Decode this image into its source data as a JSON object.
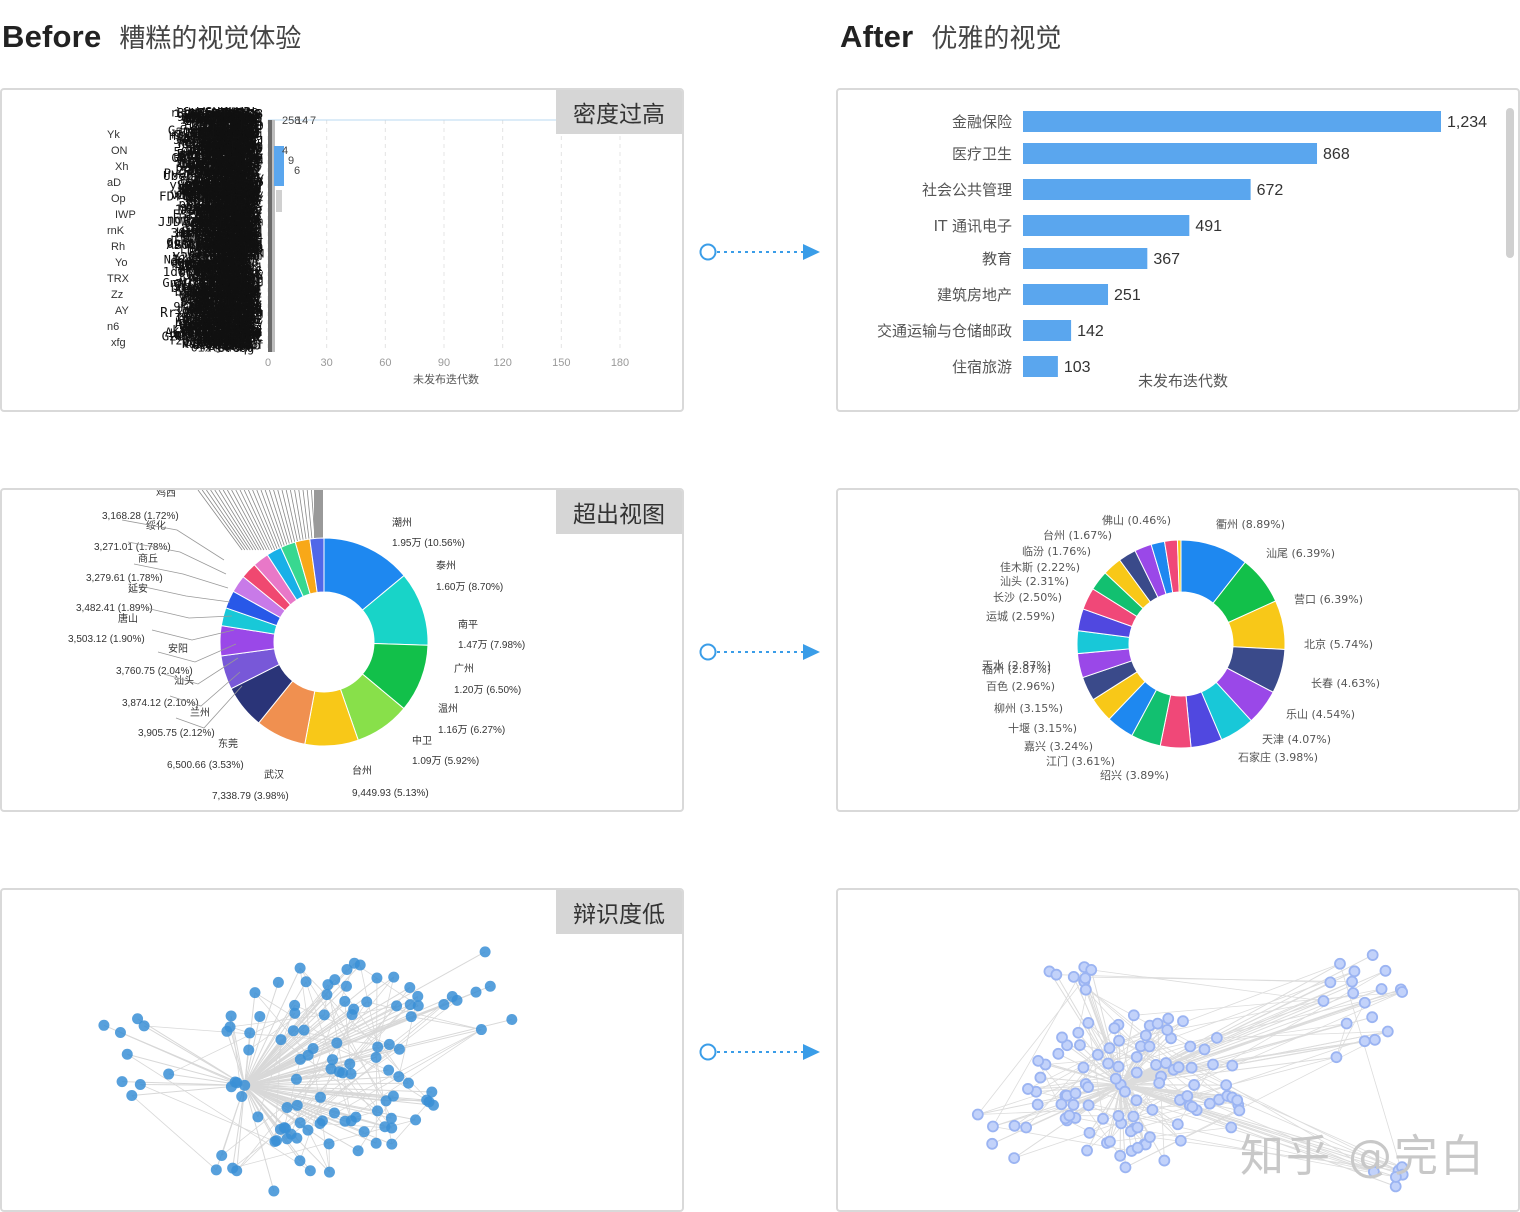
{
  "headings": {
    "before_en": "Before",
    "before_zh": "糟糕的视觉体验",
    "after_en": "After",
    "after_zh": "优雅的视觉"
  },
  "tags": {
    "density": "密度过高",
    "overflow": "超出视图",
    "recognition": "辩识度低"
  },
  "watermark": "知乎 @完白",
  "colors": {
    "bar_blue": "#5aa6ee",
    "node_before": "#3a8fd6",
    "node_after": "#9bb4f2",
    "connector": "#3a9de8",
    "panel_border": "#d9d9d9",
    "tag_bg": "#d6d6d6"
  },
  "chart_data": [
    {
      "type": "bar",
      "orientation": "horizontal",
      "panel": "before-bar",
      "xlabel": "未发布迭代数",
      "ticks": [
        0,
        30,
        60,
        90,
        120,
        150,
        180
      ],
      "xlim": [
        0,
        180
      ],
      "visible_values": [
        "258",
        "14",
        "7",
        "4",
        "9",
        "6"
      ],
      "value_axis_labels": [
        "Yk",
        "ON",
        "Xh",
        "aD",
        "Op",
        "IWP",
        "rnK",
        "Rh",
        "Yo",
        "TRX",
        "Zz",
        "AY",
        "n6",
        "xfg"
      ]
    },
    {
      "type": "bar",
      "orientation": "horizontal",
      "panel": "after-bar",
      "xlabel": "未发布迭代数",
      "categories": [
        "金融保险",
        "医疗卫生",
        "社会公共管理",
        "IT 通讯电子",
        "教育",
        "建筑房地产",
        "交通运输与仓储邮政",
        "住宿旅游"
      ],
      "values": [
        1234,
        868,
        672,
        491,
        367,
        251,
        142,
        103
      ],
      "value_labels": [
        "1,234",
        "868",
        "672",
        "491",
        "367",
        "251",
        "142",
        "103"
      ]
    },
    {
      "type": "pie",
      "variant": "donut",
      "panel": "before-pie",
      "slices": [
        {
          "label": "潮州",
          "value_label": "1.95万 (10.56%)",
          "percent": 10.56,
          "color": "#1e88f0"
        },
        {
          "label": "泰州",
          "value_label": "1.60万 (8.70%)",
          "percent": 8.7,
          "color": "#18d4c8"
        },
        {
          "label": "南平",
          "value_label": "1.47万 (7.98%)",
          "percent": 7.98,
          "color": "#12c04a"
        },
        {
          "label": "广州",
          "value_label": "1.20万 (6.50%)",
          "percent": 6.5,
          "color": "#88e04a"
        },
        {
          "label": "温州",
          "value_label": "1.16万 (6.27%)",
          "percent": 6.27,
          "color": "#f8c818"
        },
        {
          "label": "中卫",
          "value_label": "1.09万 (5.92%)",
          "percent": 5.92,
          "color": "#f09050"
        },
        {
          "label": "台州",
          "value_label": "9,449.93 (5.13%)",
          "percent": 5.13,
          "color": "#2a3478"
        },
        {
          "label": "武汉",
          "value_label": "7,338.79 (3.98%)",
          "percent": 3.98,
          "color": "#7858d8"
        },
        {
          "label": "东莞",
          "value_label": "6,500.66 (3.53%)",
          "percent": 3.53,
          "color": "#9a48e8"
        },
        {
          "label": "兰州",
          "value_label": "3,905.75 (2.12%)",
          "percent": 2.12,
          "color": "#18c8d8"
        },
        {
          "label": "汕头",
          "value_label": "3,874.12 (2.10%)",
          "percent": 2.1,
          "color": "#2858e8"
        },
        {
          "label": "安阳",
          "value_label": "3,760.75 (2.04%)",
          "percent": 2.04,
          "color": "#c87ae8"
        },
        {
          "label": "",
          "value_label": "3,503.12 (1.90%)",
          "percent": 1.9,
          "color": "#f04870"
        },
        {
          "label": "唐山",
          "value_label": "3,482.41 (1.89%)",
          "percent": 1.89,
          "color": "#e878c8"
        },
        {
          "label": "延安",
          "value_label": "3,279.61 (1.78%)",
          "percent": 1.78,
          "color": "#18b0e8"
        },
        {
          "label": "商丘",
          "value_label": "3,271.01 (1.78%)",
          "percent": 1.78,
          "color": "#38d890"
        },
        {
          "label": "绥化",
          "value_label": "3,168.28 (1.72%)",
          "percent": 1.72,
          "color": "#f8a818"
        },
        {
          "label": "鸡西",
          "value_label": "",
          "percent": 1.65,
          "color": "#5068e8"
        }
      ]
    },
    {
      "type": "pie",
      "variant": "donut",
      "panel": "after-pie",
      "slices": [
        {
          "label": "衢州",
          "value_label": "(8.89%)",
          "percent": 8.89,
          "color": "#1e88f0"
        },
        {
          "label": "汕尾",
          "value_label": "(6.39%)",
          "percent": 6.39,
          "color": "#12c04a"
        },
        {
          "label": "营口",
          "value_label": "(6.39%)",
          "percent": 6.39,
          "color": "#f8c818"
        },
        {
          "label": "北京",
          "value_label": "(5.74%)",
          "percent": 5.74,
          "color": "#3a4a8a"
        },
        {
          "label": "长春",
          "value_label": "(4.63%)",
          "percent": 4.63,
          "color": "#9a48e8"
        },
        {
          "label": "乐山",
          "value_label": "(4.54%)",
          "percent": 4.54,
          "color": "#18c8d8"
        },
        {
          "label": "天津",
          "value_label": "(4.07%)",
          "percent": 4.07,
          "color": "#5048e0"
        },
        {
          "label": "石家庄",
          "value_label": "(3.98%)",
          "percent": 3.98,
          "color": "#f04878"
        },
        {
          "label": "绍兴",
          "value_label": "(3.89%)",
          "percent": 3.89,
          "color": "#12c070"
        },
        {
          "label": "江门",
          "value_label": "(3.61%)",
          "percent": 3.61,
          "color": "#1e88f0"
        },
        {
          "label": "嘉兴",
          "value_label": "(3.24%)",
          "percent": 3.24,
          "color": "#f8c818"
        },
        {
          "label": "十堰",
          "value_label": "(3.15%)",
          "percent": 3.15,
          "color": "#3a4a8a"
        },
        {
          "label": "柳州",
          "value_label": "(3.15%)",
          "percent": 3.15,
          "color": "#9a48e8"
        },
        {
          "label": "百色",
          "value_label": "(2.96%)",
          "percent": 2.96,
          "color": "#18c8d8"
        },
        {
          "label": "天水",
          "value_label": "(2.87%)",
          "percent": 2.87,
          "color": "#5048e0"
        },
        {
          "label": "福州",
          "value_label": "(2.87%)",
          "percent": 2.87,
          "color": "#f04878"
        },
        {
          "label": "运城",
          "value_label": "(2.59%)",
          "percent": 2.59,
          "color": "#12c070"
        },
        {
          "label": "长沙",
          "value_label": "(2.50%)",
          "percent": 2.5,
          "color": "#f8c818"
        },
        {
          "label": "汕头",
          "value_label": "(2.31%)",
          "percent": 2.31,
          "color": "#3a4a8a"
        },
        {
          "label": "佳木斯",
          "value_label": "(2.22%)",
          "percent": 2.22,
          "color": "#9a48e8"
        },
        {
          "label": "临汾",
          "value_label": "(1.76%)",
          "percent": 1.76,
          "color": "#1e88f0"
        },
        {
          "label": "台州",
          "value_label": "(1.67%)",
          "percent": 1.67,
          "color": "#f04878"
        },
        {
          "label": "佛山",
          "value_label": "(0.46%)",
          "percent": 0.46,
          "color": "#f8c818"
        }
      ]
    },
    {
      "type": "network",
      "panel": "before-graph"
    },
    {
      "type": "network",
      "panel": "after-graph"
    }
  ]
}
